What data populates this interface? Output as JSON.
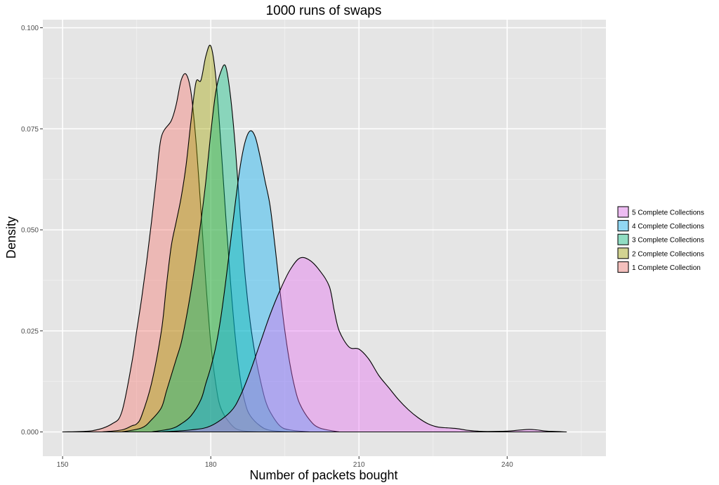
{
  "chart_data": {
    "type": "area",
    "title": "1000 runs of swaps",
    "xlabel": "Number of packets bought",
    "ylabel": "Density",
    "xlim": [
      146,
      260
    ],
    "ylim": [
      -0.006,
      0.102
    ],
    "x_ticks": [
      150,
      180,
      210,
      240
    ],
    "x_tick_labels": [
      "150",
      "180",
      "210",
      "240"
    ],
    "y_ticks": [
      0,
      0.025,
      0.05,
      0.075,
      0.1
    ],
    "y_tick_labels": [
      "0.000",
      "0.025",
      "0.050",
      "0.075",
      "0.100"
    ],
    "grid": true,
    "legend_position": "right",
    "series": [
      {
        "name": "1 Complete Collection",
        "color": "#F8766D",
        "points": [
          [
            150,
            0
          ],
          [
            156,
            0.0003
          ],
          [
            160,
            0.002
          ],
          [
            162,
            0.005
          ],
          [
            164,
            0.017
          ],
          [
            165,
            0.025
          ],
          [
            166,
            0.033
          ],
          [
            167,
            0.042
          ],
          [
            168,
            0.052
          ],
          [
            169,
            0.063
          ],
          [
            170,
            0.073
          ],
          [
            172,
            0.077
          ],
          [
            173,
            0.081
          ],
          [
            174,
            0.087
          ],
          [
            175,
            0.0885
          ],
          [
            176,
            0.084
          ],
          [
            177,
            0.072
          ],
          [
            178,
            0.055
          ],
          [
            179,
            0.037
          ],
          [
            180,
            0.022
          ],
          [
            181,
            0.012
          ],
          [
            182,
            0.006
          ],
          [
            184,
            0.002
          ],
          [
            186,
            0.0004
          ],
          [
            190,
            0
          ]
        ]
      },
      {
        "name": "2 Complete Collections",
        "color": "#A3A500",
        "points": [
          [
            158,
            0
          ],
          [
            162,
            0.0005
          ],
          [
            164,
            0.0015
          ],
          [
            165,
            0.002
          ],
          [
            166,
            0.004
          ],
          [
            168,
            0.012
          ],
          [
            170,
            0.025
          ],
          [
            171,
            0.036
          ],
          [
            172,
            0.046
          ],
          [
            173,
            0.052
          ],
          [
            174,
            0.058
          ],
          [
            175,
            0.066
          ],
          [
            176,
            0.077
          ],
          [
            177,
            0.0865
          ],
          [
            178,
            0.087
          ],
          [
            179,
            0.093
          ],
          [
            180,
            0.0955
          ],
          [
            181,
            0.088
          ],
          [
            182,
            0.072
          ],
          [
            183,
            0.054
          ],
          [
            184,
            0.037
          ],
          [
            185,
            0.023
          ],
          [
            186,
            0.013
          ],
          [
            187,
            0.007
          ],
          [
            188,
            0.004
          ],
          [
            190,
            0.0015
          ],
          [
            192,
            0.0004
          ],
          [
            196,
            0
          ]
        ]
      },
      {
        "name": "3 Complete Collections",
        "color": "#00BF7D",
        "points": [
          [
            162,
            0
          ],
          [
            166,
            0.001
          ],
          [
            168,
            0.003
          ],
          [
            170,
            0.006
          ],
          [
            171,
            0.01
          ],
          [
            172,
            0.014
          ],
          [
            173,
            0.018
          ],
          [
            174,
            0.022
          ],
          [
            175,
            0.028
          ],
          [
            176,
            0.035
          ],
          [
            177,
            0.043
          ],
          [
            178,
            0.052
          ],
          [
            179,
            0.062
          ],
          [
            180,
            0.074
          ],
          [
            181,
            0.084
          ],
          [
            182,
            0.089
          ],
          [
            183,
            0.0905
          ],
          [
            184,
            0.083
          ],
          [
            185,
            0.07
          ],
          [
            186,
            0.053
          ],
          [
            187,
            0.038
          ],
          [
            188,
            0.027
          ],
          [
            189,
            0.019
          ],
          [
            190,
            0.013
          ],
          [
            191,
            0.008
          ],
          [
            192,
            0.005
          ],
          [
            194,
            0.0015
          ],
          [
            196,
            0.0005
          ],
          [
            200,
            0
          ]
        ]
      },
      {
        "name": "4 Complete Collections",
        "color": "#00B0F6",
        "points": [
          [
            168,
            0
          ],
          [
            172,
            0.0008
          ],
          [
            174,
            0.002
          ],
          [
            176,
            0.004
          ],
          [
            178,
            0.008
          ],
          [
            179,
            0.012
          ],
          [
            180,
            0.016
          ],
          [
            181,
            0.021
          ],
          [
            182,
            0.028
          ],
          [
            183,
            0.037
          ],
          [
            184,
            0.047
          ],
          [
            185,
            0.057
          ],
          [
            186,
            0.066
          ],
          [
            187,
            0.072
          ],
          [
            188,
            0.0745
          ],
          [
            189,
            0.073
          ],
          [
            190,
            0.068
          ],
          [
            191,
            0.062
          ],
          [
            192,
            0.056
          ],
          [
            193,
            0.046
          ],
          [
            194,
            0.035
          ],
          [
            195,
            0.025
          ],
          [
            196,
            0.017
          ],
          [
            197,
            0.011
          ],
          [
            198,
            0.007
          ],
          [
            200,
            0.003
          ],
          [
            202,
            0.001
          ],
          [
            206,
            0
          ]
        ]
      },
      {
        "name": "5 Complete Collections",
        "color": "#E76BF3",
        "points": [
          [
            170,
            0
          ],
          [
            176,
            0.0005
          ],
          [
            180,
            0.0015
          ],
          [
            184,
            0.005
          ],
          [
            186,
            0.009
          ],
          [
            188,
            0.015
          ],
          [
            190,
            0.022
          ],
          [
            192,
            0.029
          ],
          [
            194,
            0.035
          ],
          [
            196,
            0.04
          ],
          [
            198,
            0.043
          ],
          [
            200,
            0.0425
          ],
          [
            202,
            0.04
          ],
          [
            204,
            0.036
          ],
          [
            205,
            0.03
          ],
          [
            206,
            0.025
          ],
          [
            208,
            0.021
          ],
          [
            210,
            0.0205
          ],
          [
            212,
            0.018
          ],
          [
            214,
            0.014
          ],
          [
            216,
            0.011
          ],
          [
            218,
            0.008
          ],
          [
            220,
            0.0055
          ],
          [
            222,
            0.0035
          ],
          [
            224,
            0.002
          ],
          [
            226,
            0.0012
          ],
          [
            228,
            0.001
          ],
          [
            230,
            0.0008
          ],
          [
            232,
            0.0004
          ],
          [
            234,
            0.0002
          ],
          [
            236,
            0.0001
          ],
          [
            240,
            0.0002
          ],
          [
            244,
            0.0006
          ],
          [
            246,
            0.0005
          ],
          [
            248,
            0.0002
          ],
          [
            252,
            0
          ]
        ]
      }
    ]
  }
}
